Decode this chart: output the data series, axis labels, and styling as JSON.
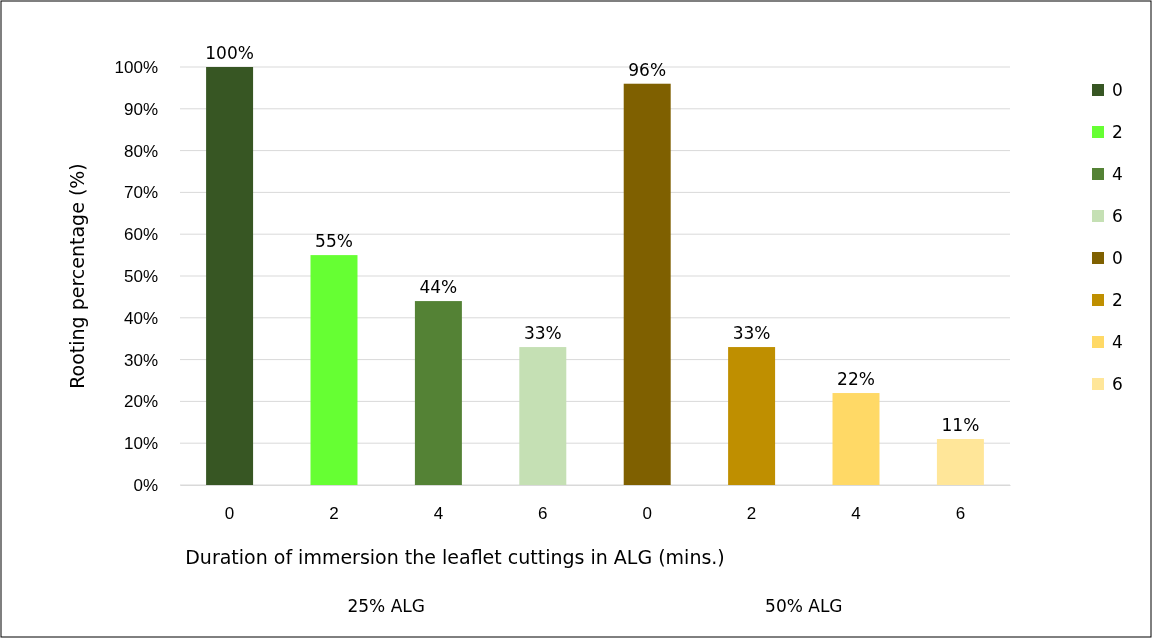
{
  "chart_data": {
    "type": "bar",
    "xlabel": "Duration of immersion the leaflet cuttings in ALG (mins.)",
    "ylabel": "Rooting percentage (%)",
    "categories": [
      "0",
      "2",
      "4",
      "6",
      "0",
      "2",
      "4",
      "6"
    ],
    "series": [
      {
        "name": "0",
        "color": "#375623",
        "values": [
          100,
          null,
          null,
          null,
          null,
          null,
          null,
          null
        ],
        "value_labels": [
          "100%",
          null,
          null,
          null,
          null,
          null,
          null,
          null
        ]
      },
      {
        "name": "2",
        "color": "#66ff33",
        "values": [
          null,
          55,
          null,
          null,
          null,
          null,
          null,
          null
        ],
        "value_labels": [
          null,
          "55%",
          null,
          null,
          null,
          null,
          null,
          null
        ]
      },
      {
        "name": "4",
        "color": "#548235",
        "values": [
          null,
          null,
          44,
          null,
          null,
          null,
          null,
          null
        ],
        "value_labels": [
          null,
          null,
          "44%",
          null,
          null,
          null,
          null,
          null
        ]
      },
      {
        "name": "6",
        "color": "#c5e0b4",
        "values": [
          null,
          null,
          null,
          33,
          null,
          null,
          null,
          null
        ],
        "value_labels": [
          null,
          null,
          null,
          "33%",
          null,
          null,
          null,
          null
        ]
      },
      {
        "name": "0",
        "color": "#7f6000",
        "values": [
          null,
          null,
          null,
          null,
          96,
          null,
          null,
          null
        ],
        "value_labels": [
          null,
          null,
          null,
          null,
          "96%",
          null,
          null,
          null
        ]
      },
      {
        "name": "2",
        "color": "#bf8f00",
        "values": [
          null,
          null,
          null,
          null,
          null,
          33,
          null,
          null
        ],
        "value_labels": [
          null,
          null,
          null,
          null,
          null,
          "33%",
          null,
          null
        ]
      },
      {
        "name": "4",
        "color": "#ffd966",
        "values": [
          null,
          null,
          null,
          null,
          null,
          null,
          22,
          null
        ],
        "value_labels": [
          null,
          null,
          null,
          null,
          null,
          null,
          "22%",
          null
        ]
      },
      {
        "name": "6",
        "color": "#ffe699",
        "values": [
          null,
          null,
          null,
          null,
          null,
          null,
          null,
          11
        ],
        "value_labels": [
          null,
          null,
          null,
          null,
          null,
          null,
          null,
          "11%"
        ]
      }
    ],
    "ylim": [
      0,
      100
    ],
    "yticks": [
      {
        "value": 0,
        "label": "0%"
      },
      {
        "value": 10,
        "label": "10%"
      },
      {
        "value": 20,
        "label": "20%"
      },
      {
        "value": 30,
        "label": "30%"
      },
      {
        "value": 40,
        "label": "40%"
      },
      {
        "value": 50,
        "label": "50%"
      },
      {
        "value": 60,
        "label": "60%"
      },
      {
        "value": 70,
        "label": "70%"
      },
      {
        "value": 80,
        "label": "80%"
      },
      {
        "value": 90,
        "label": "90%"
      },
      {
        "value": 100,
        "label": "100%"
      }
    ],
    "grid": "y",
    "legend": "right",
    "annotations": [
      "25% ALG",
      "50% ALG"
    ]
  }
}
